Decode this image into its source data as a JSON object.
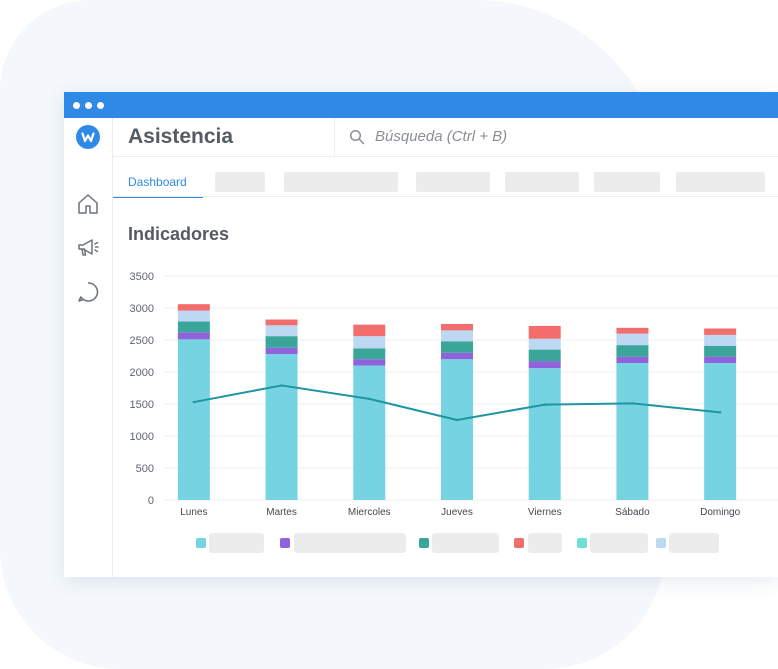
{
  "app": {
    "title": "Asistencia"
  },
  "search": {
    "placeholder": "Búsqueda (Ctrl + B)"
  },
  "tabs": {
    "active_label": "Dashboard"
  },
  "section": {
    "title": "Indicadores"
  },
  "icons": {
    "logo": "w-logo",
    "sidebar": [
      "home-icon",
      "megaphone-icon",
      "chat-icon"
    ],
    "search": "search-icon"
  },
  "colors": {
    "titlebar": "#2e8ae6",
    "accent": "#2e8ae6",
    "line": "#1f95a2"
  },
  "chart_data": {
    "type": "bar",
    "stacked": true,
    "categories": [
      "Lunes",
      "Martes",
      "Miercoles",
      "Jueves",
      "Viernes",
      "Sábado",
      "Domingo"
    ],
    "ylim": [
      0,
      3500
    ],
    "yticks": [
      0,
      500,
      1000,
      1500,
      2000,
      2500,
      3000,
      3500
    ],
    "grid": true,
    "series": [
      {
        "color": "#76d4e2",
        "values": [
          2510,
          2280,
          2100,
          2200,
          2060,
          2140,
          2140
        ]
      },
      {
        "color": "#8e63dc",
        "values": [
          110,
          100,
          100,
          100,
          110,
          100,
          100
        ]
      },
      {
        "color": "#3aa69a",
        "values": [
          170,
          180,
          170,
          180,
          180,
          180,
          170
        ]
      },
      {
        "color": "#bcd8f2",
        "values": [
          170,
          170,
          190,
          170,
          170,
          180,
          170
        ]
      },
      {
        "color": "#f46d6d",
        "values": [
          100,
          90,
          180,
          100,
          200,
          90,
          100
        ]
      }
    ],
    "line": {
      "color": "#1f95a2",
      "values": [
        1530,
        1790,
        1580,
        1250,
        1490,
        1510,
        1370
      ]
    },
    "legend": {
      "placement": "bottom",
      "swatches": [
        "#76d4e2",
        "#8e63dc",
        "#3aa69a",
        "#f46d6d",
        "#6ee0d2",
        "#bcd8f2"
      ]
    }
  }
}
